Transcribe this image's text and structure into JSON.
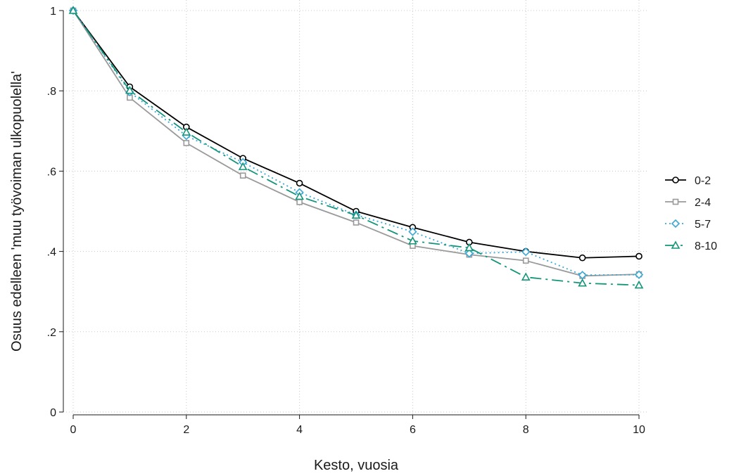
{
  "chart_data": {
    "type": "line",
    "title": "",
    "xlabel": "Kesto, vuosia",
    "ylabel": "Osuus edelleen 'muu työvoiman ulkopuolella'",
    "xlim": [
      0,
      10
    ],
    "ylim": [
      0,
      1
    ],
    "x_ticks": [
      0,
      2,
      4,
      6,
      8,
      10
    ],
    "x_tick_labels": [
      "0",
      "2",
      "4",
      "6",
      "8",
      "10"
    ],
    "y_ticks": [
      0,
      0.2,
      0.4,
      0.6,
      0.8,
      1
    ],
    "y_tick_labels": [
      "0",
      ".2",
      ".4",
      ".6",
      ".8",
      "1"
    ],
    "grid": true,
    "legend_position": "right",
    "x": [
      0,
      1,
      2,
      3,
      4,
      5,
      6,
      7,
      8,
      9,
      10
    ],
    "series": [
      {
        "name": "0-2",
        "color": "#000000",
        "marker": "circle",
        "dash": "",
        "values": [
          1.0,
          0.81,
          0.71,
          0.632,
          0.57,
          0.5,
          0.46,
          0.423,
          0.4,
          0.384,
          0.388
        ]
      },
      {
        "name": "2-4",
        "color": "#9a9a9a",
        "marker": "square",
        "dash": "",
        "values": [
          1.0,
          0.783,
          0.67,
          0.589,
          0.523,
          0.472,
          0.414,
          0.392,
          0.377,
          0.339,
          0.343
        ]
      },
      {
        "name": "5-7",
        "color": "#3aa9d6",
        "marker": "diamond",
        "dash": "2,4",
        "values": [
          1.0,
          0.797,
          0.688,
          0.622,
          0.547,
          0.491,
          0.449,
          0.395,
          0.399,
          0.341,
          0.342
        ]
      },
      {
        "name": "8-10",
        "color": "#14957a",
        "marker": "triangle",
        "dash": "16,6,3,6",
        "values": [
          1.0,
          0.801,
          0.697,
          0.611,
          0.537,
          0.49,
          0.426,
          0.409,
          0.336,
          0.321,
          0.316
        ]
      }
    ]
  }
}
